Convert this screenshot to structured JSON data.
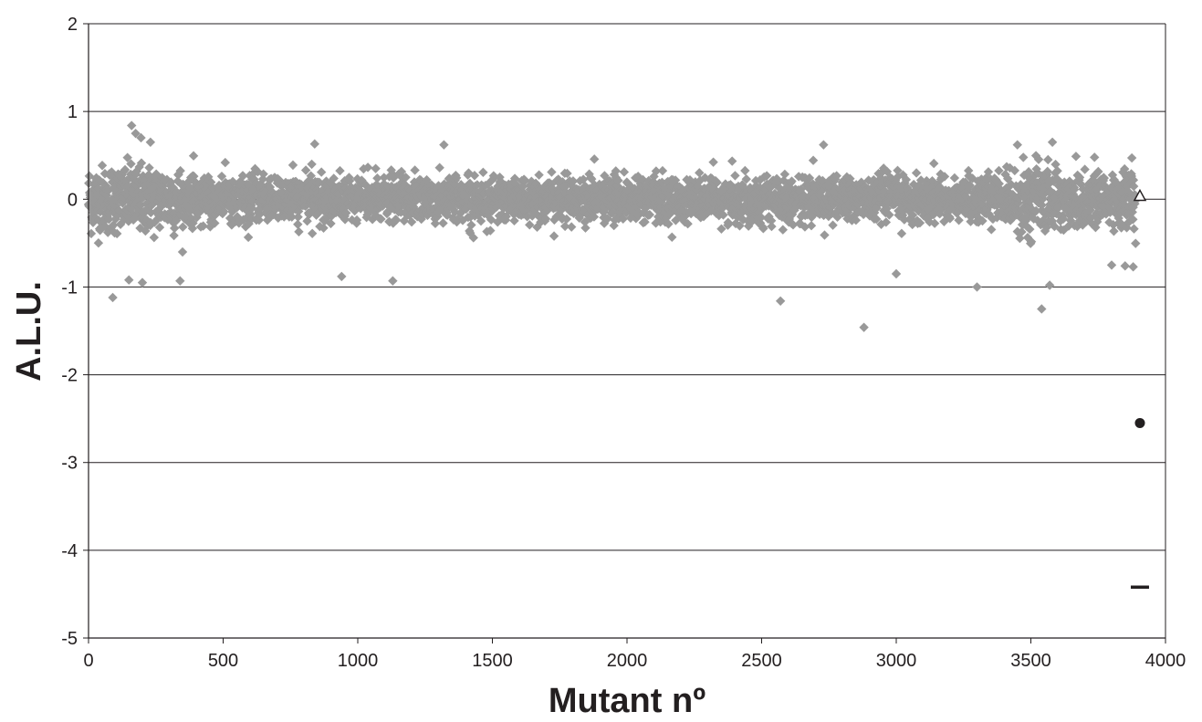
{
  "chart_data": {
    "type": "scatter",
    "title": "",
    "xlabel": "Mutant nº",
    "ylabel": "A.L.U.",
    "xlim": [
      0,
      4000
    ],
    "ylim": [
      -5,
      2
    ],
    "x_ticks": [
      "0",
      "500",
      "1000",
      "1500",
      "2000",
      "2500",
      "3000",
      "3500",
      "4000"
    ],
    "y_ticks": [
      "2",
      "1",
      "0",
      "-1",
      "-2",
      "-3",
      "-4",
      "-5"
    ],
    "grid": "horizontal",
    "legend": "none",
    "colors": {
      "points": "#999999",
      "axis": "#231f20",
      "grid": "#231f20",
      "controls": "#231f20"
    },
    "series": [
      {
        "marker": "diamond",
        "count": 3900,
        "x_range": [
          0,
          3890
        ],
        "typical_range": [
          -0.35,
          0.35
        ],
        "outliers": [
          [
            160,
            0.84
          ],
          [
            175,
            0.75
          ],
          [
            195,
            0.7
          ],
          [
            230,
            0.65
          ],
          [
            840,
            0.63
          ],
          [
            1320,
            0.62
          ],
          [
            2730,
            0.62
          ],
          [
            3450,
            0.62
          ],
          [
            3580,
            0.65
          ],
          [
            90,
            -1.12
          ],
          [
            150,
            -0.92
          ],
          [
            200,
            -0.95
          ],
          [
            340,
            -0.93
          ],
          [
            940,
            -0.88
          ],
          [
            1130,
            -0.93
          ],
          [
            2570,
            -1.16
          ],
          [
            2880,
            -1.46
          ],
          [
            3000,
            -0.85
          ],
          [
            3300,
            -1.0
          ],
          [
            3540,
            -1.25
          ],
          [
            3570,
            -0.98
          ],
          [
            3850,
            -0.76
          ],
          [
            3880,
            -0.77
          ],
          [
            3800,
            -0.75
          ]
        ]
      },
      {
        "marker": "triangle-open",
        "x": [
          3905
        ],
        "values": [
          0.04
        ]
      },
      {
        "marker": "circle",
        "x": [
          3905
        ],
        "values": [
          -2.55
        ]
      },
      {
        "marker": "dash",
        "x": [
          3905
        ],
        "values": [
          -4.42
        ]
      }
    ]
  }
}
